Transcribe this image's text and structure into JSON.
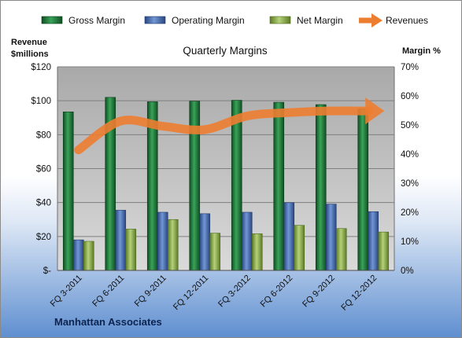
{
  "chart_data": {
    "type": "bar",
    "title": "Quarterly Margins",
    "categories": [
      "FQ 3-2011",
      "FQ 6-2011",
      "FQ 9-2011",
      "FQ 12-2011",
      "FQ 3-2012",
      "FQ 6-2012",
      "FQ 9-2012",
      "FQ 12-2012"
    ],
    "left_axis": {
      "label_line1": "Revenue",
      "label_line2": "$millions",
      "range": [
        0,
        120
      ],
      "tick_labels": [
        "$-",
        "$20",
        "$40",
        "$60",
        "$80",
        "$100",
        "$120"
      ]
    },
    "right_axis": {
      "label": "Margin %",
      "range": [
        0,
        70
      ],
      "tick_labels": [
        "0%",
        "10%",
        "20%",
        "30%",
        "40%",
        "50%",
        "60%",
        "70%"
      ]
    },
    "series": [
      {
        "name": "Gross Margin",
        "type": "bar",
        "axis": "right",
        "color": "#1e7a3c",
        "values": [
          54.5,
          59.5,
          58.0,
          58.2,
          58.5,
          57.8,
          57.0,
          55.5
        ]
      },
      {
        "name": "Operating Margin",
        "type": "bar",
        "axis": "right",
        "color": "#4a6fb0",
        "values": [
          10.5,
          20.7,
          20.0,
          19.5,
          20.0,
          23.3,
          22.8,
          20.2
        ]
      },
      {
        "name": "Net Margin",
        "type": "bar",
        "axis": "right",
        "color": "#8fb44a",
        "values": [
          10.0,
          14.2,
          17.5,
          12.8,
          12.6,
          15.5,
          14.4,
          13.2
        ]
      },
      {
        "name": "Revenues",
        "type": "line",
        "axis": "left",
        "color": "#ed7d31",
        "values": [
          71,
          88,
          85,
          83,
          91,
          93,
          94,
          94
        ]
      }
    ],
    "legend_position": "top",
    "grid": true
  },
  "footer": {
    "company": "Manhattan Associates"
  }
}
